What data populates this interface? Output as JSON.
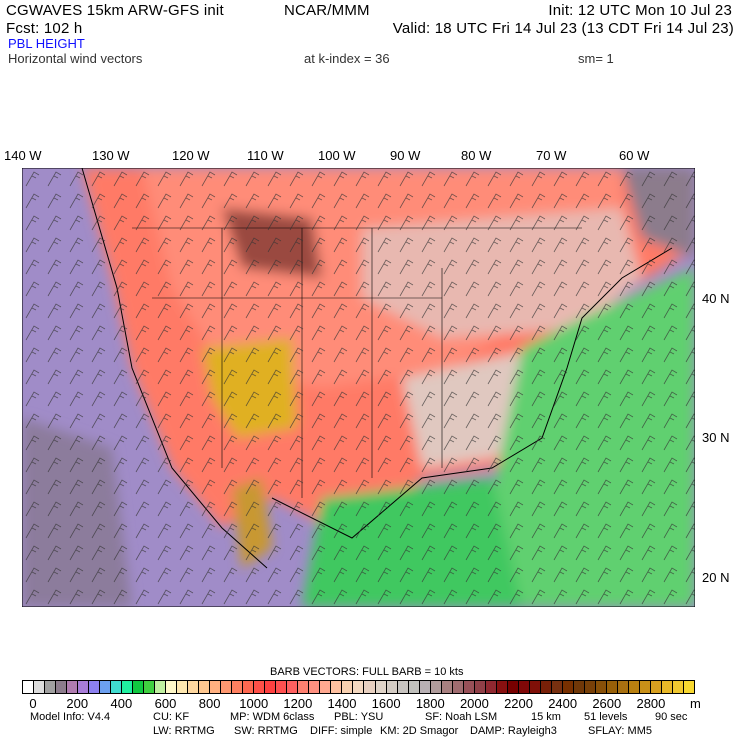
{
  "header": {
    "model_title": "CGWAVES 15km ARW-GFS init",
    "org": "NCAR/MMM",
    "init": "Init: 12 UTC Mon 10 Jul 23",
    "forecast": "Fcst:  102 h",
    "valid": "Valid: 18 UTC Fri 14 Jul 23 (13 CDT Fri 14 Jul 23)",
    "field": "PBL HEIGHT",
    "vectors": "Horizontal wind vectors",
    "k_index": "at k-index =  36",
    "smoothing": "sm= 1"
  },
  "map": {
    "lon_labels": [
      "140 W",
      "130 W",
      "120 W",
      "110 W",
      "100 W",
      "90 W",
      "80 W",
      "70 W",
      "60 W"
    ],
    "lat_labels": [
      "40 N",
      "30 N",
      "20 N"
    ]
  },
  "legend": {
    "barb_note": "BARB VECTORS:  FULL BARB = 10 kts",
    "tick_labels": [
      "0",
      "200",
      "400",
      "600",
      "800",
      "1000",
      "1200",
      "1400",
      "1600",
      "1800",
      "2000",
      "2200",
      "2400",
      "2600",
      "2800"
    ],
    "unit": "m",
    "colors": [
      "#ffffff",
      "#dcdcdc",
      "#a0a0a0",
      "#8c7c8c",
      "#b07cb0",
      "#a87cd8",
      "#8c80f0",
      "#6ca0f0",
      "#40dcd0",
      "#20f0a0",
      "#10c840",
      "#40d040",
      "#c0f0a0",
      "#fff8c8",
      "#ffe8b0",
      "#ffd8a0",
      "#ffc890",
      "#ffb080",
      "#ff9870",
      "#ff8060",
      "#ff6850",
      "#ff5048",
      "#ff4040",
      "#ff5050",
      "#ff6060",
      "#ff8070",
      "#ff9080",
      "#ffa890",
      "#ffc0a0",
      "#f8d0b0",
      "#f4d8c0",
      "#e8d0c0",
      "#e0d4c8",
      "#d4ccc4",
      "#c8c4c0",
      "#c0c0bc",
      "#b8b0b4",
      "#b09c9c",
      "#a88080",
      "#a06c70",
      "#985058",
      "#904048",
      "#902830",
      "#881010",
      "#780000",
      "#800808",
      "#801008",
      "#782008",
      "#783010",
      "#783000",
      "#703808",
      "#784008",
      "#885008",
      "#986008",
      "#a87010",
      "#b88010",
      "#c89018",
      "#d8a020",
      "#e8b828",
      "#f0c830",
      "#f8d830"
    ]
  },
  "model_info": {
    "line1": [
      "Model Info: V4.4",
      "CU: KF",
      "MP: WDM 6class",
      "PBL: YSU",
      "SF: Noah LSM",
      "15 km",
      "51 levels",
      "90 sec"
    ],
    "line2": [
      "LW: RRTMG",
      "SW: RRTMG",
      "DIFF: simple",
      "KM: 2D Smagor",
      "DAMP: Rayleigh3",
      "SFLAY: MM5"
    ]
  }
}
